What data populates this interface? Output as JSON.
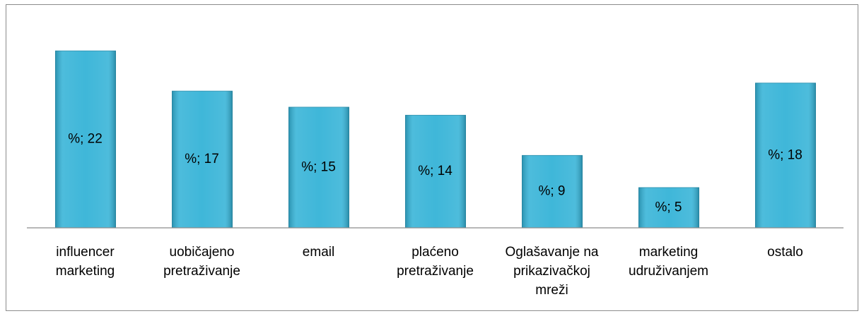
{
  "chart_data": {
    "type": "bar",
    "categories": [
      "influencer marketing",
      "uobičajeno pretraživanje",
      "email",
      "plaćeno pretraživanje",
      "Oglašavanje na prikazivačkoj mreži",
      "marketing udruživanjem",
      "ostalo"
    ],
    "values": [
      22,
      17,
      15,
      14,
      9,
      5,
      18
    ],
    "value_labels": [
      "%; 22",
      "%; 17",
      "%; 15",
      "%; 14",
      "%; 9",
      "%; 5",
      "%; 18"
    ],
    "color": "#35b3d7",
    "ylim": [
      0,
      25
    ]
  }
}
